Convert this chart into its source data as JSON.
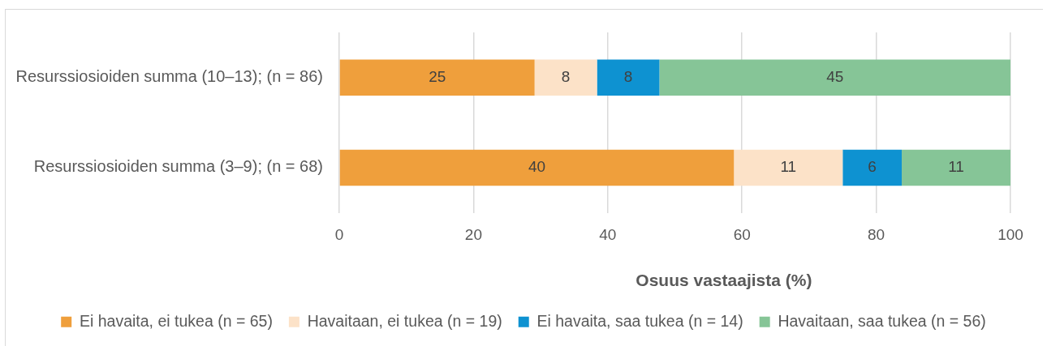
{
  "chart_data": {
    "type": "bar",
    "orientation": "horizontal",
    "stacked": true,
    "categories": [
      "Resurssiosioiden summa (10–13); (n = 86)",
      "Resurssiosioiden summa (3–9); (n = 68)"
    ],
    "series": [
      {
        "name": "Ei havaita, ei tukea (n = 65)",
        "color": "#ef9f3c",
        "values": [
          29.1,
          58.8
        ]
      },
      {
        "name": "Havaitaan, ei tukea (n = 19)",
        "color": "#fce2c8",
        "values": [
          9.3,
          16.2
        ]
      },
      {
        "name": "Ei havaita, saa tukea (n = 14)",
        "color": "#0e92d1",
        "values": [
          9.3,
          8.8
        ]
      },
      {
        "name": "Havaitaan, saa tukea (n = 56)",
        "color": "#86c597",
        "values": [
          52.3,
          16.2
        ]
      }
    ],
    "annotations": [
      "25",
      "8",
      "8",
      "45",
      "40",
      "11",
      "6",
      "11"
    ],
    "xlim": [
      0,
      100
    ],
    "xticks": [
      0,
      20,
      40,
      60,
      80,
      100
    ],
    "xlabel": "Osuus vastaajista (%)",
    "grid": "x",
    "legend": "bottom"
  }
}
